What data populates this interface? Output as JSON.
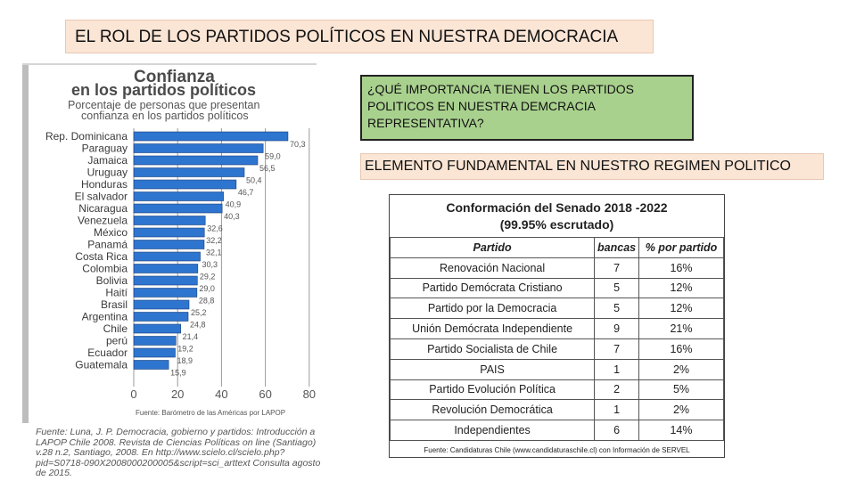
{
  "title": "EL ROL DE LOS PARTIDOS POLÍTICOS EN NUESTRA DEMOCRACIA",
  "question": "¿QUÉ   IMPORTANCIA TIENEN LOS PARTIDOS POLITICOS EN NUESTRA DEMCRACIA REPRESENTATIVA?",
  "element": "ELEMENTO FUNDAMENTAL EN NUESTRO REGIMEN POLITICO",
  "chart": {
    "title1": "Confianza",
    "title2": "en los partidos políticos",
    "subtitle1": "Porcentaje de personas que presentan",
    "subtitle2": "confianza en los partidos políticos",
    "source": "Fuente: Barómetro de las Américas por LAPOP"
  },
  "citation": "Fuente: Luna, J. P. Democracia, gobierno y partidos: Introducción a LAPOP Chile 2008. Revista de Ciencias Políticas on line (Santiago) v.28 n.2, Santiago, 2008. En http://www.scielo.cl/scielo.php?pid=S0718-090X2008000200005&script=sci_arttext Consulta agosto de 2015.",
  "chart_data": {
    "type": "bar",
    "orientation": "horizontal",
    "categories": [
      "Rep. Dominicana",
      "Paraguay",
      "Jamaica",
      "Uruguay",
      "Honduras",
      "El salvador",
      "Nicaragua",
      "Venezuela",
      "México",
      "Panamá",
      "Costa Rica",
      "Colombia",
      "Bolivia",
      "Haití",
      "Brasil",
      "Argentina",
      "Chile",
      "perú",
      "Ecuador",
      "Guatemala"
    ],
    "values": [
      70.3,
      59.0,
      56.5,
      50.4,
      46.7,
      40.9,
      40.3,
      32.6,
      32.2,
      32.1,
      30.3,
      29.2,
      29.0,
      28.8,
      25.2,
      24.8,
      21.4,
      19.2,
      18.9,
      15.9
    ],
    "value_labels": [
      "70,3",
      "59,0",
      "56,5",
      "50,4",
      "46,7",
      "40,9",
      "40,3",
      "32,6",
      "32,2",
      "32,1",
      "30,3",
      "29,2",
      "29,0",
      "28,8",
      "25,2",
      "24,8",
      "21,4",
      "19,2",
      "18,9",
      "15,9"
    ],
    "xlim": [
      0,
      80
    ],
    "xticks": [
      "0",
      "20",
      "40",
      "60",
      "80"
    ],
    "grid": true,
    "colors": {
      "bar": "#2e75cf",
      "grid": "#9a9a9a"
    }
  },
  "senate": {
    "title1": "Conformación del Senado 2018 -2022",
    "title2": "(99.95% escrutado)",
    "headers": [
      "Partido",
      "bancas",
      "% por partido"
    ],
    "rows": [
      [
        "Renovación Nacional",
        "7",
        "16%"
      ],
      [
        "Partido Demócrata Cristiano",
        "5",
        "12%"
      ],
      [
        "Partido por la Democracia",
        "5",
        "12%"
      ],
      [
        "Unión Demócrata Independiente",
        "9",
        "21%"
      ],
      [
        "Partido Socialista de Chile",
        "7",
        "16%"
      ],
      [
        "PAIS",
        "1",
        "2%"
      ],
      [
        "Partido Evolución Política",
        "2",
        "5%"
      ],
      [
        "Revolución Democrática",
        "1",
        "2%"
      ],
      [
        "Independientes",
        "6",
        "14%"
      ]
    ],
    "source": "Fuente: Candidaturas Chile (www.candidaturaschile.cl) con Información de SERVEL"
  }
}
